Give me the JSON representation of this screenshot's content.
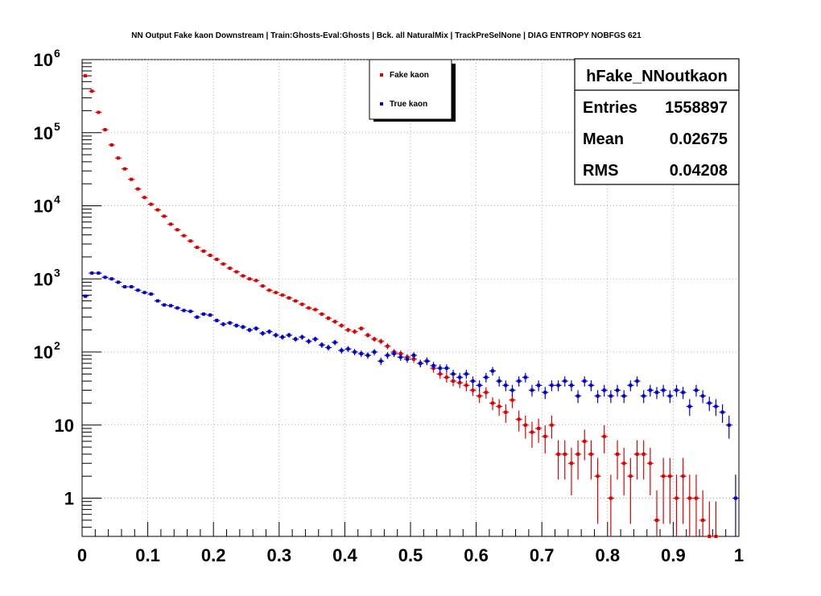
{
  "chart_data": {
    "type": "scatter",
    "title": "NN Output Fake kaon Downstream | Train:Ghosts-Eval:Ghosts | Bck. all NaturalMix | TrackPreSelNone | DIAG ENTROPY NOBFGS 621",
    "xlabel": "",
    "ylabel": "",
    "xlim": [
      0,
      1
    ],
    "ylim": [
      0.3,
      1000000
    ],
    "yscale": "log",
    "x_ticks": [
      "0",
      "0.1",
      "0.2",
      "0.3",
      "0.4",
      "0.5",
      "0.6",
      "0.7",
      "0.8",
      "0.9",
      "1"
    ],
    "y_ticks": [
      {
        "base": "10",
        "exp": "6",
        "value": 1000000
      },
      {
        "base": "10",
        "exp": "5",
        "value": 100000
      },
      {
        "base": "10",
        "exp": "4",
        "value": 10000
      },
      {
        "base": "10",
        "exp": "3",
        "value": 1000
      },
      {
        "base": "10",
        "exp": "2",
        "value": 100
      },
      {
        "base": "10",
        "exp": "",
        "value": 10
      },
      {
        "base": "1",
        "exp": "",
        "value": 1
      }
    ],
    "grid": true,
    "legend_position": "top-center",
    "series": [
      {
        "name": "Fake kaon",
        "color": "#dd0000",
        "x": [
          0.005,
          0.015,
          0.025,
          0.035,
          0.045,
          0.055,
          0.065,
          0.075,
          0.085,
          0.095,
          0.105,
          0.115,
          0.125,
          0.135,
          0.145,
          0.155,
          0.165,
          0.175,
          0.185,
          0.195,
          0.205,
          0.215,
          0.225,
          0.235,
          0.245,
          0.255,
          0.265,
          0.275,
          0.285,
          0.295,
          0.305,
          0.315,
          0.325,
          0.335,
          0.345,
          0.355,
          0.365,
          0.375,
          0.385,
          0.395,
          0.405,
          0.415,
          0.425,
          0.435,
          0.445,
          0.455,
          0.465,
          0.475,
          0.485,
          0.495,
          0.505,
          0.515,
          0.525,
          0.535,
          0.545,
          0.555,
          0.565,
          0.575,
          0.585,
          0.595,
          0.605,
          0.615,
          0.625,
          0.635,
          0.645,
          0.655,
          0.665,
          0.675,
          0.685,
          0.695,
          0.705,
          0.715,
          0.725,
          0.735,
          0.745,
          0.755,
          0.765,
          0.775,
          0.785,
          0.795,
          0.805,
          0.815,
          0.825,
          0.835,
          0.845,
          0.855,
          0.865,
          0.875,
          0.885,
          0.895,
          0.905,
          0.915,
          0.925,
          0.935,
          0.945,
          0.955,
          0.965
        ],
        "values": [
          600000,
          370000,
          190000,
          110000,
          68000,
          45000,
          32000,
          23000,
          17000,
          13000,
          10500,
          8800,
          7200,
          5600,
          4700,
          3900,
          3300,
          2700,
          2400,
          2100,
          1850,
          1600,
          1400,
          1250,
          1100,
          1000,
          950,
          800,
          700,
          650,
          600,
          550,
          500,
          450,
          400,
          380,
          330,
          290,
          260,
          230,
          200,
          190,
          210,
          170,
          150,
          140,
          120,
          100,
          95,
          85,
          80,
          70,
          75,
          60,
          50,
          45,
          40,
          38,
          35,
          30,
          25,
          28,
          20,
          18,
          15,
          22,
          12,
          10,
          8,
          9,
          7,
          10,
          4,
          4,
          3,
          4,
          6,
          4,
          2,
          7,
          1,
          4,
          3,
          2,
          4,
          4,
          3,
          0.5,
          2,
          2,
          1,
          2,
          1,
          1,
          0.5,
          0.3,
          0.3
        ],
        "errors": [
          800,
          600,
          440,
          330,
          260,
          210,
          180,
          150,
          130,
          115,
          102,
          94,
          85,
          75,
          69,
          62,
          57,
          52,
          49,
          46,
          43,
          40,
          37,
          35,
          33,
          32,
          31,
          28,
          26,
          25,
          24,
          23,
          22,
          21,
          20,
          19,
          18,
          17,
          16,
          15,
          14,
          14,
          14,
          13,
          12,
          12,
          11,
          10,
          10,
          9,
          9,
          8,
          9,
          8,
          7,
          7,
          6,
          6,
          6,
          5,
          5,
          5,
          4,
          4,
          4,
          5,
          3,
          3,
          3,
          3,
          3,
          3,
          2,
          2,
          2,
          2,
          2.4,
          2,
          1.4,
          2.6,
          1,
          2,
          1.7,
          1.4,
          2,
          2,
          1.7,
          0.7,
          1.4,
          1.4,
          1,
          1.4,
          1,
          1,
          0.7,
          0.5,
          0.5
        ]
      },
      {
        "name": "True kaon",
        "color": "#0000cc",
        "x": [
          0.005,
          0.015,
          0.025,
          0.035,
          0.045,
          0.055,
          0.065,
          0.075,
          0.085,
          0.095,
          0.105,
          0.115,
          0.125,
          0.135,
          0.145,
          0.155,
          0.165,
          0.175,
          0.185,
          0.195,
          0.205,
          0.215,
          0.225,
          0.235,
          0.245,
          0.255,
          0.265,
          0.275,
          0.285,
          0.295,
          0.305,
          0.315,
          0.325,
          0.335,
          0.345,
          0.355,
          0.365,
          0.375,
          0.385,
          0.395,
          0.405,
          0.415,
          0.425,
          0.435,
          0.445,
          0.455,
          0.465,
          0.475,
          0.485,
          0.495,
          0.505,
          0.515,
          0.525,
          0.535,
          0.545,
          0.555,
          0.565,
          0.575,
          0.585,
          0.595,
          0.605,
          0.615,
          0.625,
          0.635,
          0.645,
          0.655,
          0.665,
          0.675,
          0.685,
          0.695,
          0.705,
          0.715,
          0.725,
          0.735,
          0.745,
          0.755,
          0.765,
          0.775,
          0.785,
          0.795,
          0.805,
          0.815,
          0.825,
          0.835,
          0.845,
          0.855,
          0.865,
          0.875,
          0.885,
          0.895,
          0.905,
          0.915,
          0.925,
          0.935,
          0.945,
          0.955,
          0.965,
          0.975,
          0.985,
          0.995
        ],
        "values": [
          580,
          1200,
          1200,
          1050,
          1000,
          900,
          780,
          780,
          700,
          650,
          620,
          500,
          440,
          430,
          400,
          370,
          360,
          300,
          330,
          320,
          270,
          240,
          250,
          230,
          220,
          200,
          210,
          180,
          190,
          170,
          160,
          170,
          150,
          160,
          140,
          150,
          125,
          115,
          135,
          105,
          110,
          100,
          95,
          90,
          100,
          75,
          90,
          95,
          85,
          80,
          90,
          70,
          75,
          65,
          60,
          60,
          50,
          45,
          50,
          40,
          35,
          45,
          55,
          40,
          35,
          30,
          40,
          45,
          30,
          35,
          28,
          35,
          35,
          40,
          35,
          25,
          40,
          35,
          25,
          30,
          25,
          30,
          25,
          35,
          40,
          25,
          30,
          28,
          30,
          25,
          30,
          28,
          18,
          30,
          25,
          20,
          18,
          15,
          10,
          1
        ]
      }
    ],
    "legend": [
      {
        "label": "Fake kaon",
        "color": "#dd0000"
      },
      {
        "label": "True kaon",
        "color": "#0000cc"
      }
    ],
    "stats": {
      "name": "hFake_NNoutkaon",
      "entries_label": "Entries",
      "entries_value": "1558897",
      "mean_label": "Mean",
      "mean_value": "0.02675",
      "rms_label": "RMS",
      "rms_value": "0.04208"
    }
  }
}
